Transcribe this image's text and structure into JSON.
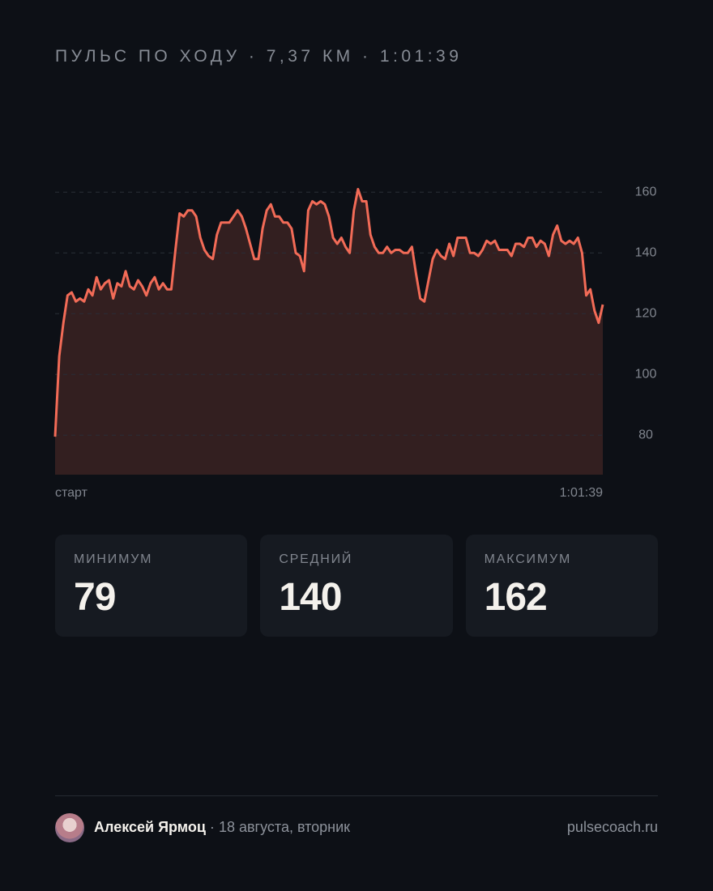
{
  "chart_data": {
    "type": "area",
    "title": "ПУЛЬС ПО ХОДУ · 7,37 КМ · 1:01:39",
    "x_start_label": "старт",
    "x_end_label": "1:01:39",
    "color": "#f26b57",
    "fill": "#331f20",
    "ylim": [
      67,
      170
    ],
    "yticks": [
      80,
      100,
      120,
      140,
      160
    ],
    "grid": true,
    "values": [
      79.5,
      106,
      117,
      126,
      127,
      124,
      125,
      124,
      128,
      126,
      132,
      128,
      130,
      131,
      125,
      130,
      129,
      134,
      129,
      128,
      131,
      129,
      126,
      130,
      132,
      128,
      130,
      128,
      128,
      141,
      153,
      152,
      154,
      154,
      152,
      145,
      141,
      139,
      138,
      146,
      150,
      150,
      150,
      152,
      154,
      152,
      148,
      143,
      138,
      138,
      148,
      154,
      156,
      152,
      152,
      150,
      150,
      148,
      140,
      139,
      134,
      154,
      157,
      156,
      157,
      156,
      152,
      145,
      143,
      145,
      142,
      140,
      154,
      161,
      157,
      157,
      146,
      142,
      140,
      140,
      142,
      140,
      141,
      141,
      140,
      140,
      142,
      133,
      125,
      124,
      131,
      138,
      141,
      139,
      138,
      143,
      139,
      145,
      145,
      145,
      140,
      140,
      139,
      141,
      144,
      143,
      144,
      141,
      141,
      141,
      139,
      143,
      143,
      142,
      145,
      145,
      142,
      144,
      143,
      139,
      146,
      149,
      144,
      143,
      144,
      143,
      145,
      140,
      126,
      128,
      121,
      117,
      123
    ]
  },
  "stats": [
    {
      "label": "МИНИМУМ",
      "value": 79
    },
    {
      "label": "СРЕДНИЙ",
      "value": 140
    },
    {
      "label": "МАКСИМУМ",
      "value": 162
    }
  ],
  "footer": {
    "name": "Алексей Ярмоц",
    "separator": "·",
    "date": "18 августа, вторник",
    "site": "pulsecoach.ru"
  }
}
